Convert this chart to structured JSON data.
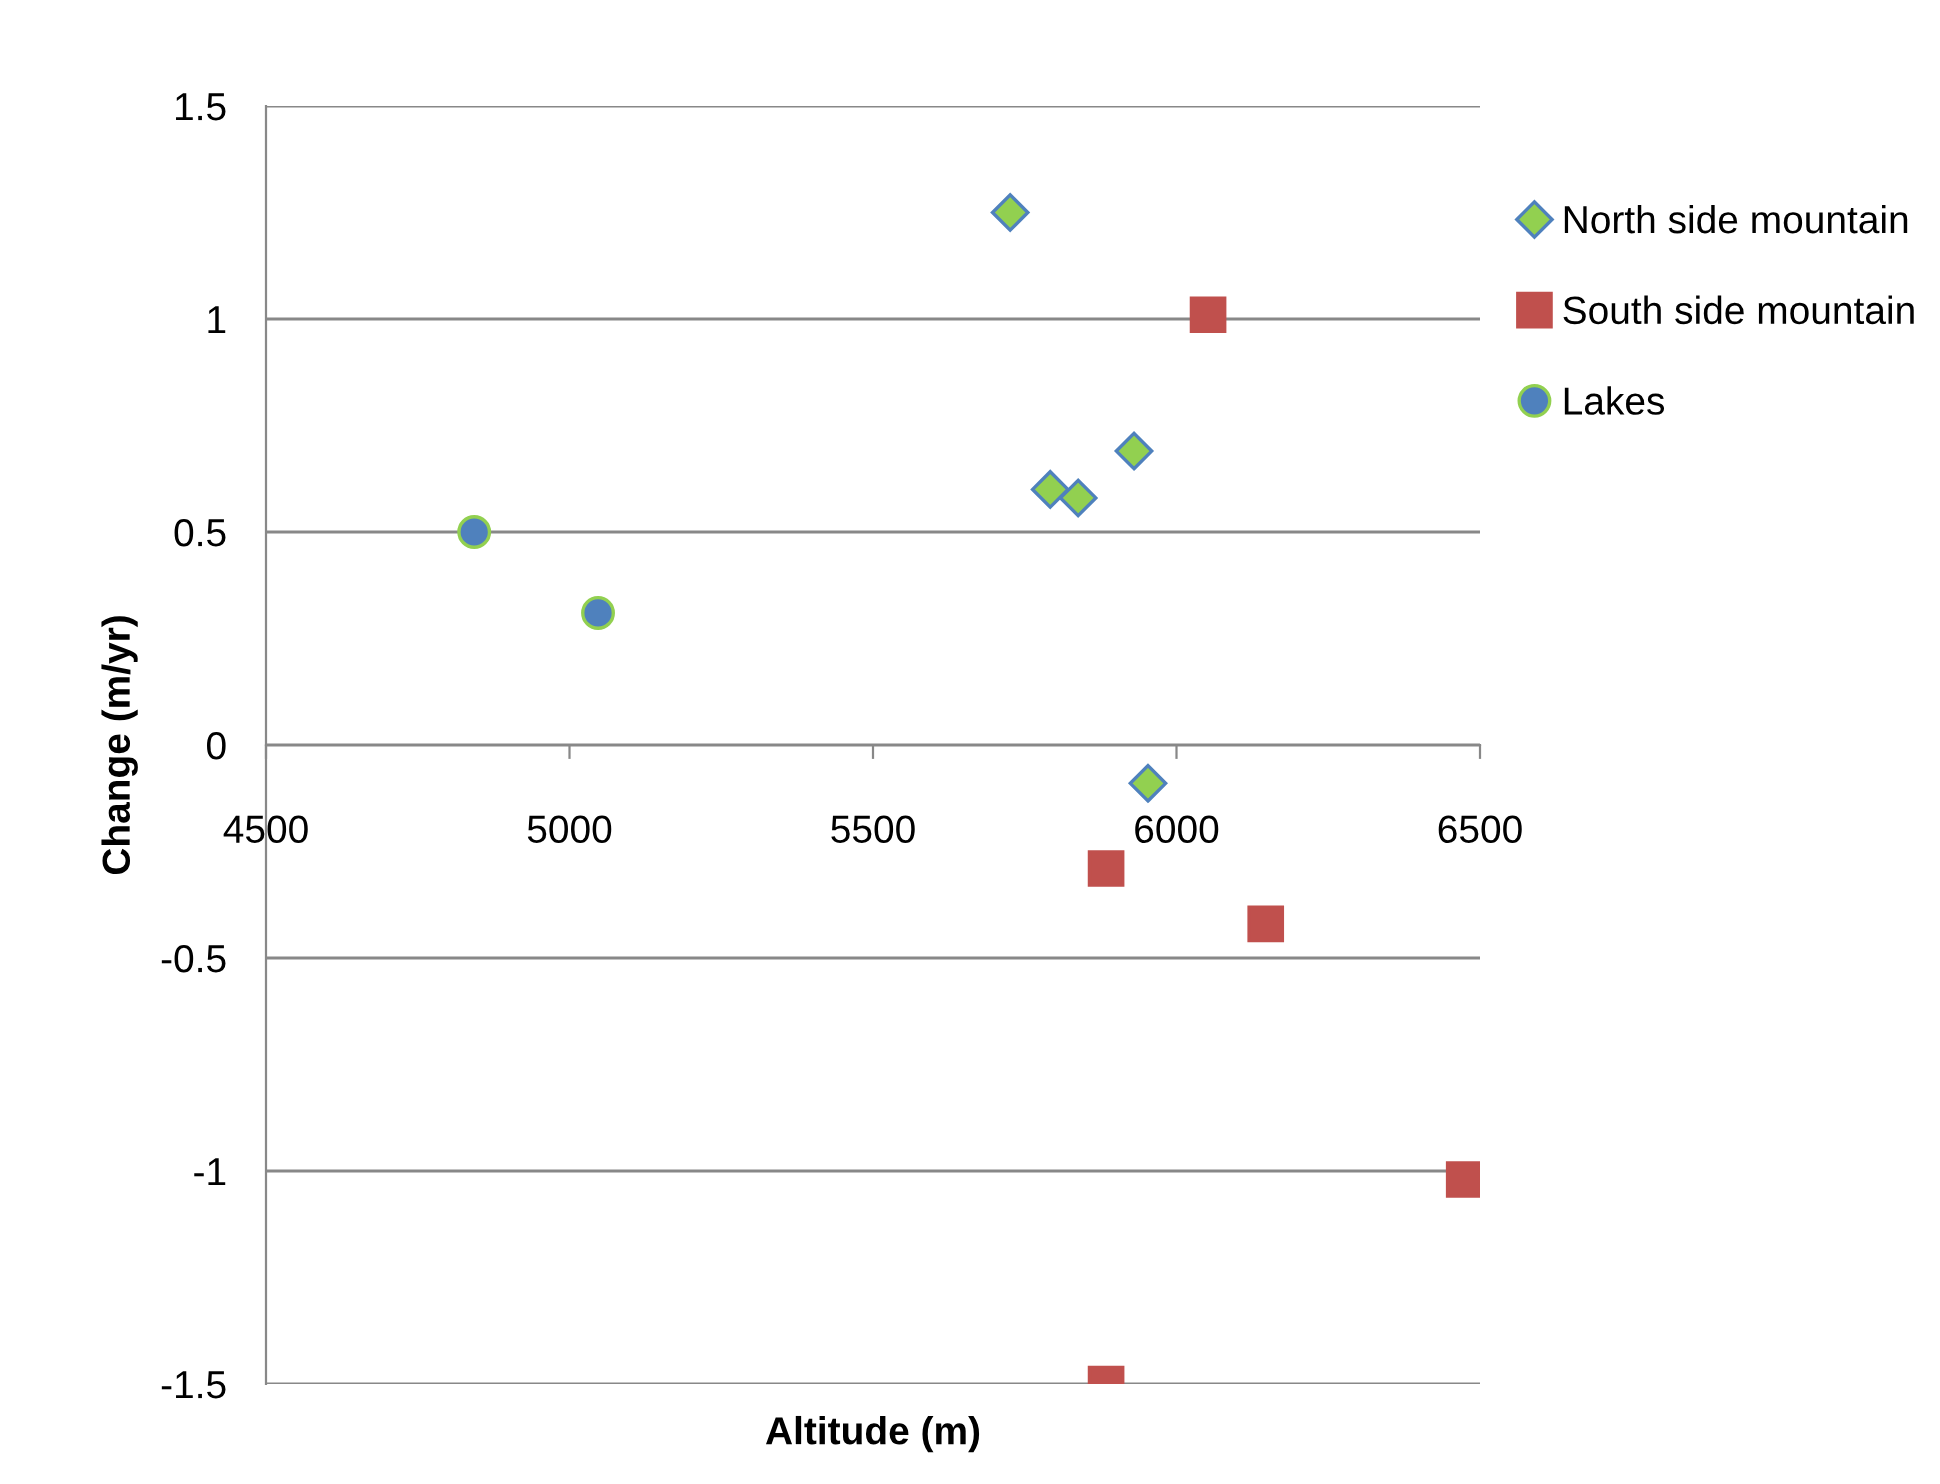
{
  "chart_data": {
    "type": "scatter",
    "xlabel": "Altitude (m)",
    "ylabel": "Change (m/yr)",
    "xlim": [
      4500,
      6500
    ],
    "xticks": [
      4500,
      5000,
      5500,
      6000,
      6500
    ],
    "ylim": [
      -1.5,
      1.5
    ],
    "yticks": [
      -1.5,
      -1,
      -0.5,
      0,
      0.5,
      1,
      1.5
    ],
    "grid": "y",
    "legend": "right",
    "series": [
      {
        "name": "North side mountain",
        "color": "#92d050",
        "marker": "diamond",
        "x": [
          5726,
          5792,
          5838,
          5930,
          5953
        ],
        "values": [
          1.25,
          0.6,
          0.58,
          0.69,
          -0.09
        ]
      },
      {
        "name": "South side mountain",
        "color": "#c0504d",
        "marker": "square",
        "x": [
          6052,
          5884,
          6147,
          6474,
          5884
        ],
        "values": [
          1.01,
          -0.29,
          -0.42,
          -1.02,
          -1.5
        ]
      },
      {
        "name": "Lakes",
        "color": "#4f81bd",
        "marker": "circle",
        "x": [
          4843,
          5047
        ],
        "values": [
          0.5,
          0.31
        ]
      }
    ]
  }
}
